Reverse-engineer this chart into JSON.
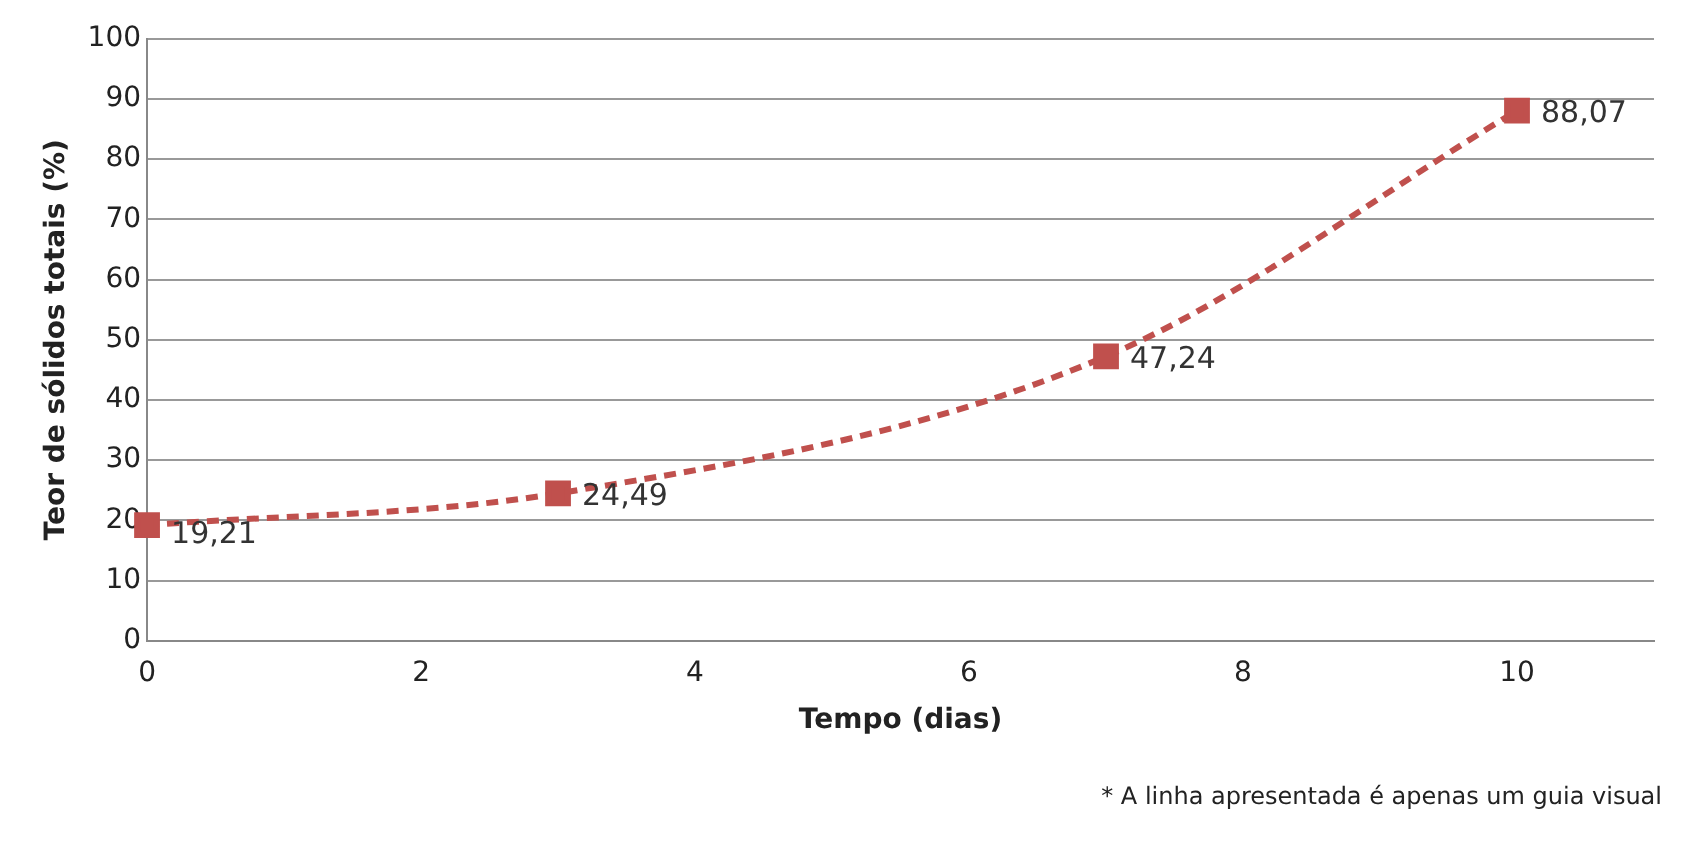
{
  "chart_data": {
    "type": "line",
    "xlabel": "Tempo (dias)",
    "ylabel": "Teor de sólidos totais (%)",
    "x": [
      0,
      3,
      7,
      10
    ],
    "series": [
      {
        "color": "#c0504d",
        "values": [
          19.21,
          24.49,
          47.24,
          88.07
        ],
        "value_labels": [
          "19,21",
          "24,49",
          "47,24",
          "88,07"
        ]
      }
    ],
    "xlim": [
      0,
      11
    ],
    "xticks": [
      0,
      2,
      4,
      6,
      8,
      10
    ],
    "ylim": [
      0,
      100
    ],
    "yticks": [
      0,
      10,
      20,
      30,
      40,
      50,
      60,
      70,
      80,
      90,
      100
    ],
    "grid": "y",
    "marker": "square",
    "line_style": "dashed",
    "annotations": [
      "* A linha apresentada é apenas um guia visual"
    ]
  }
}
